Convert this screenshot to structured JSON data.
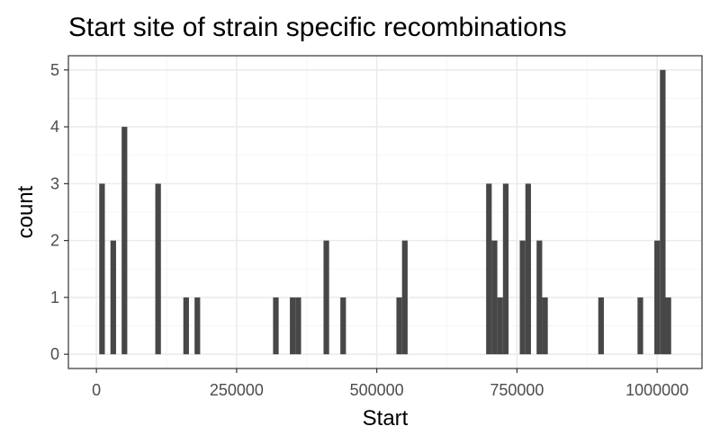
{
  "chart_data": {
    "type": "bar",
    "title": "Start site of strain specific recombinations",
    "xlabel": "Start",
    "ylabel": "count",
    "xlim": [
      -50000,
      1080000
    ],
    "ylim": [
      -0.25,
      5.25
    ],
    "x_ticks": [
      0,
      250000,
      500000,
      750000,
      1000000
    ],
    "x_tick_labels": [
      "0",
      "250000",
      "500000",
      "750000",
      "1000000"
    ],
    "y_ticks": [
      0,
      1,
      2,
      3,
      4,
      5
    ],
    "y_tick_labels": [
      "0",
      "1",
      "2",
      "3",
      "4",
      "5"
    ],
    "bin_width": 10000,
    "bins": [
      {
        "x": 10000,
        "count": 3
      },
      {
        "x": 30000,
        "count": 2
      },
      {
        "x": 50000,
        "count": 4
      },
      {
        "x": 110000,
        "count": 3
      },
      {
        "x": 160000,
        "count": 1
      },
      {
        "x": 180000,
        "count": 1
      },
      {
        "x": 320000,
        "count": 1
      },
      {
        "x": 350000,
        "count": 1
      },
      {
        "x": 360000,
        "count": 1
      },
      {
        "x": 410000,
        "count": 2
      },
      {
        "x": 440000,
        "count": 1
      },
      {
        "x": 540000,
        "count": 1
      },
      {
        "x": 550000,
        "count": 2
      },
      {
        "x": 700000,
        "count": 3
      },
      {
        "x": 710000,
        "count": 2
      },
      {
        "x": 720000,
        "count": 1
      },
      {
        "x": 730000,
        "count": 3
      },
      {
        "x": 760000,
        "count": 2
      },
      {
        "x": 770000,
        "count": 3
      },
      {
        "x": 790000,
        "count": 2
      },
      {
        "x": 800000,
        "count": 1
      },
      {
        "x": 900000,
        "count": 1
      },
      {
        "x": 970000,
        "count": 1
      },
      {
        "x": 1000000,
        "count": 2
      },
      {
        "x": 1010000,
        "count": 5
      },
      {
        "x": 1020000,
        "count": 1
      }
    ],
    "grid": true,
    "bar_color": "#474747"
  }
}
